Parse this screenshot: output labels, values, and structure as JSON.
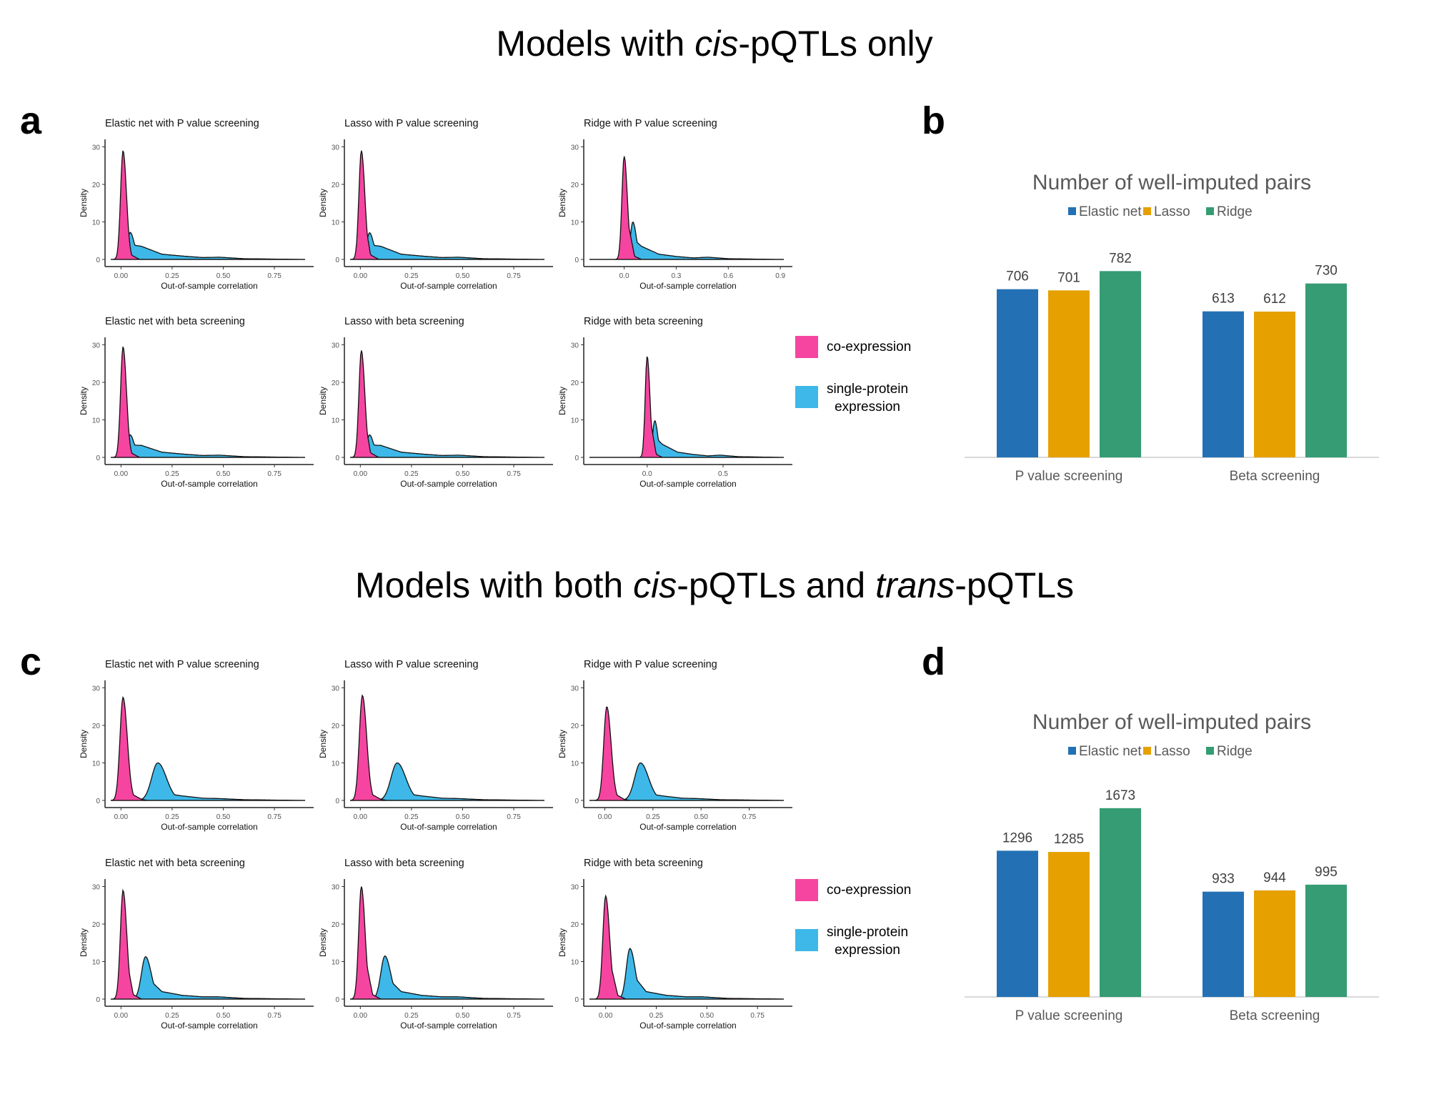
{
  "sections": [
    {
      "title_parts": [
        {
          "text": "Models with ",
          "italic": false
        },
        {
          "text": "cis",
          "italic": true
        },
        {
          "text": "-pQTLs only",
          "italic": false
        }
      ]
    },
    {
      "title_parts": [
        {
          "text": "Models with both ",
          "italic": false
        },
        {
          "text": "cis",
          "italic": true
        },
        {
          "text": "-pQTLs and ",
          "italic": false
        },
        {
          "text": "trans",
          "italic": true
        },
        {
          "text": "-pQTLs",
          "italic": false
        }
      ]
    }
  ],
  "panel_letters": {
    "a": "a",
    "b": "b",
    "c": "c",
    "d": "d"
  },
  "density_legend": {
    "items": [
      {
        "label": "co-expression",
        "color": "#F545A0"
      },
      {
        "label": "single-protein\nexpression",
        "color": "#3DB8E8"
      }
    ]
  },
  "colors": {
    "coexpression": "#F545A0",
    "single_protein": "#3DB8E8",
    "elastic_net": "#2371B4",
    "lasso": "#E6A000",
    "ridge": "#359C73"
  },
  "chart_data": [
    {
      "panel": "a",
      "type": "area",
      "title": "Elastic net with P value screening",
      "xlabel": "Out-of-sample correlation",
      "ylabel": "Density",
      "xlim": [
        -0.05,
        0.9
      ],
      "ylim": [
        0,
        32
      ],
      "xticks": [
        "0.00",
        "0.25",
        "0.50",
        "0.75"
      ],
      "xtick_values": [
        0,
        0.25,
        0.5,
        0.75
      ],
      "yticks": [
        0,
        10,
        20,
        30
      ],
      "series": [
        {
          "name": "co-expression",
          "peak_x": 0.01,
          "peak_y": 29,
          "sd": 0.012,
          "tail": [
            [
              0.05,
              1.2
            ],
            [
              0.09,
              0
            ]
          ]
        },
        {
          "name": "single-protein expression",
          "peak_x": 0.045,
          "peak_y": 7.2,
          "tail": [
            [
              0.1,
              3.5
            ],
            [
              0.2,
              1.4
            ],
            [
              0.3,
              0.9
            ],
            [
              0.4,
              0.5
            ],
            [
              0.48,
              0.6
            ],
            [
              0.6,
              0.2
            ],
            [
              0.88,
              0
            ]
          ]
        }
      ]
    },
    {
      "panel": "a",
      "type": "area",
      "title": "Lasso with P value screening",
      "xlabel": "Out-of-sample correlation",
      "ylabel": "Density",
      "xlim": [
        -0.05,
        0.9
      ],
      "ylim": [
        0,
        32
      ],
      "xticks": [
        "0.00",
        "0.25",
        "0.50",
        "0.75"
      ],
      "xtick_values": [
        0,
        0.25,
        0.5,
        0.75
      ],
      "yticks": [
        0,
        10,
        20,
        30
      ],
      "series": [
        {
          "name": "co-expression",
          "peak_x": 0.005,
          "peak_y": 29,
          "sd": 0.012,
          "tail": [
            [
              0.05,
              1.2
            ],
            [
              0.09,
              0
            ]
          ]
        },
        {
          "name": "single-protein expression",
          "peak_x": 0.045,
          "peak_y": 7.1,
          "tail": [
            [
              0.1,
              3.5
            ],
            [
              0.2,
              1.4
            ],
            [
              0.3,
              0.9
            ],
            [
              0.4,
              0.5
            ],
            [
              0.48,
              0.6
            ],
            [
              0.6,
              0.2
            ],
            [
              0.88,
              0
            ]
          ]
        }
      ]
    },
    {
      "panel": "a",
      "type": "area",
      "title": "Ridge with P value screening",
      "xlabel": "Out-of-sample correlation",
      "ylabel": "Density",
      "xlim": [
        -0.2,
        0.92
      ],
      "ylim": [
        0,
        32
      ],
      "xticks": [
        "0.0",
        "0.3",
        "0.6",
        "0.9"
      ],
      "xtick_values": [
        0,
        0.3,
        0.6,
        0.9
      ],
      "yticks": [
        0,
        10,
        20,
        30
      ],
      "series": [
        {
          "name": "co-expression",
          "peak_x": 0.0,
          "peak_y": 27.5,
          "sd": 0.013,
          "tail": [
            [
              0.06,
              0.8
            ],
            [
              0.1,
              0
            ]
          ]
        },
        {
          "name": "single-protein expression",
          "peak_x": 0.05,
          "peak_y": 10,
          "tail": [
            [
              0.1,
              3.5
            ],
            [
              0.2,
              1.4
            ],
            [
              0.3,
              0.8
            ],
            [
              0.4,
              0.4
            ],
            [
              0.48,
              0.6
            ],
            [
              0.6,
              0.2
            ],
            [
              0.88,
              0
            ]
          ]
        }
      ]
    },
    {
      "panel": "a",
      "type": "area",
      "title": "Elastic net with beta screening",
      "xlabel": "Out-of-sample correlation",
      "ylabel": "Density",
      "xlim": [
        -0.05,
        0.9
      ],
      "ylim": [
        0,
        32
      ],
      "xticks": [
        "0.00",
        "0.25",
        "0.50",
        "0.75"
      ],
      "xtick_values": [
        0,
        0.25,
        0.5,
        0.75
      ],
      "yticks": [
        0,
        10,
        20,
        30
      ],
      "series": [
        {
          "name": "co-expression",
          "peak_x": 0.01,
          "peak_y": 29.5,
          "sd": 0.012,
          "tail": [
            [
              0.05,
              1.2
            ],
            [
              0.09,
              0
            ]
          ]
        },
        {
          "name": "single-protein expression",
          "peak_x": 0.045,
          "peak_y": 6,
          "tail": [
            [
              0.1,
              3.2
            ],
            [
              0.2,
              1.4
            ],
            [
              0.3,
              0.9
            ],
            [
              0.4,
              0.5
            ],
            [
              0.48,
              0.6
            ],
            [
              0.6,
              0.2
            ],
            [
              0.88,
              0
            ]
          ]
        }
      ]
    },
    {
      "panel": "a",
      "type": "area",
      "title": "Lasso with beta screening",
      "xlabel": "Out-of-sample correlation",
      "ylabel": "Density",
      "xlim": [
        -0.05,
        0.9
      ],
      "ylim": [
        0,
        32
      ],
      "xticks": [
        "0.00",
        "0.25",
        "0.50",
        "0.75"
      ],
      "xtick_values": [
        0,
        0.25,
        0.5,
        0.75
      ],
      "yticks": [
        0,
        10,
        20,
        30
      ],
      "series": [
        {
          "name": "co-expression",
          "peak_x": 0.005,
          "peak_y": 28.5,
          "sd": 0.012,
          "tail": [
            [
              0.05,
              1.2
            ],
            [
              0.09,
              0
            ]
          ]
        },
        {
          "name": "single-protein expression",
          "peak_x": 0.045,
          "peak_y": 6,
          "tail": [
            [
              0.1,
              3.2
            ],
            [
              0.2,
              1.4
            ],
            [
              0.3,
              0.9
            ],
            [
              0.4,
              0.5
            ],
            [
              0.48,
              0.6
            ],
            [
              0.6,
              0.2
            ],
            [
              0.88,
              0
            ]
          ]
        }
      ]
    },
    {
      "panel": "a",
      "type": "area",
      "title": "Ridge with beta screening",
      "xlabel": "Out-of-sample correlation",
      "ylabel": "Density",
      "xlim": [
        -0.38,
        0.9
      ],
      "ylim": [
        0,
        32
      ],
      "xticks": [
        "0.0",
        "0.5"
      ],
      "xtick_values": [
        0,
        0.5
      ],
      "yticks": [
        0,
        10,
        20,
        30
      ],
      "series": [
        {
          "name": "co-expression",
          "peak_x": 0.0,
          "peak_y": 27,
          "sd": 0.013,
          "tail": [
            [
              0.06,
              0.8
            ],
            [
              0.1,
              0
            ]
          ]
        },
        {
          "name": "single-protein expression",
          "peak_x": 0.05,
          "peak_y": 9.8,
          "tail": [
            [
              0.1,
              3.5
            ],
            [
              0.2,
              1.4
            ],
            [
              0.3,
              0.8
            ],
            [
              0.4,
              0.4
            ],
            [
              0.48,
              0.6
            ],
            [
              0.6,
              0.2
            ],
            [
              0.88,
              0
            ]
          ]
        }
      ]
    },
    {
      "panel": "b",
      "type": "bar",
      "title": "Number of well-imputed pairs",
      "categories": [
        "P value screening",
        "Beta screening"
      ],
      "series": [
        {
          "name": "Elastic net",
          "values": [
            706,
            613
          ]
        },
        {
          "name": "Lasso",
          "values": [
            701,
            612
          ]
        },
        {
          "name": "Ridge",
          "values": [
            782,
            730
          ]
        }
      ],
      "ylim": [
        0,
        900
      ],
      "legend": "top-center",
      "xlabel": "",
      "ylabel": ""
    },
    {
      "panel": "c",
      "type": "area",
      "title": "Elastic net with P value screening",
      "xlabel": "Out-of-sample correlation",
      "ylabel": "Density",
      "xlim": [
        -0.05,
        0.9
      ],
      "ylim": [
        0,
        32
      ],
      "xticks": [
        "0.00",
        "0.25",
        "0.50",
        "0.75"
      ],
      "xtick_values": [
        0,
        0.25,
        0.5,
        0.75
      ],
      "yticks": [
        0,
        10,
        20,
        30
      ],
      "series": [
        {
          "name": "co-expression",
          "peak_x": 0.01,
          "peak_y": 27.5,
          "sd": 0.015,
          "tail": [
            [
              0.06,
              1.5
            ],
            [
              0.1,
              0.3
            ],
            [
              0.13,
              0
            ]
          ]
        },
        {
          "name": "single-protein expression",
          "peak_x": 0.18,
          "peak_y": 10,
          "sd": 0.03,
          "tail": [
            [
              0.25,
              1.6
            ],
            [
              0.3,
              1.2
            ],
            [
              0.4,
              0.6
            ],
            [
              0.48,
              0.5
            ],
            [
              0.6,
              0.2
            ],
            [
              0.88,
              0
            ]
          ]
        }
      ]
    },
    {
      "panel": "c",
      "type": "area",
      "title": "Lasso with P value screening",
      "xlabel": "Out-of-sample correlation",
      "ylabel": "Density",
      "xlim": [
        -0.05,
        0.9
      ],
      "ylim": [
        0,
        32
      ],
      "xticks": [
        "0.00",
        "0.25",
        "0.50",
        "0.75"
      ],
      "xtick_values": [
        0,
        0.25,
        0.5,
        0.75
      ],
      "yticks": [
        0,
        10,
        20,
        30
      ],
      "series": [
        {
          "name": "co-expression",
          "peak_x": 0.01,
          "peak_y": 28,
          "sd": 0.015,
          "tail": [
            [
              0.06,
              1.5
            ],
            [
              0.1,
              0.3
            ],
            [
              0.13,
              0
            ]
          ]
        },
        {
          "name": "single-protein expression",
          "peak_x": 0.18,
          "peak_y": 10,
          "sd": 0.03,
          "tail": [
            [
              0.25,
              1.6
            ],
            [
              0.3,
              1.2
            ],
            [
              0.4,
              0.6
            ],
            [
              0.48,
              0.5
            ],
            [
              0.6,
              0.2
            ],
            [
              0.88,
              0
            ]
          ]
        }
      ]
    },
    {
      "panel": "c",
      "type": "area",
      "title": "Ridge with P value screening",
      "xlabel": "Out-of-sample correlation",
      "ylabel": "Density",
      "xlim": [
        -0.08,
        0.93
      ],
      "ylim": [
        0,
        32
      ],
      "xticks": [
        "0.00",
        "0.25",
        "0.50",
        "0.75"
      ],
      "xtick_values": [
        0,
        0.25,
        0.5,
        0.75
      ],
      "yticks": [
        0,
        10,
        20,
        30
      ],
      "series": [
        {
          "name": "co-expression",
          "peak_x": 0.01,
          "peak_y": 25,
          "sd": 0.016,
          "tail": [
            [
              0.06,
              1.5
            ],
            [
              0.1,
              0.3
            ],
            [
              0.13,
              0
            ]
          ]
        },
        {
          "name": "single-protein expression",
          "peak_x": 0.185,
          "peak_y": 10,
          "sd": 0.03,
          "tail": [
            [
              0.25,
              1.6
            ],
            [
              0.3,
              1.2
            ],
            [
              0.4,
              0.6
            ],
            [
              0.48,
              0.5
            ],
            [
              0.6,
              0.2
            ],
            [
              0.92,
              0
            ]
          ]
        }
      ]
    },
    {
      "panel": "c",
      "type": "area",
      "title": "Elastic net with beta screening",
      "xlabel": "Out-of-sample correlation",
      "ylabel": "Density",
      "xlim": [
        -0.05,
        0.9
      ],
      "ylim": [
        0,
        32
      ],
      "xticks": [
        "0.00",
        "0.25",
        "0.50",
        "0.75"
      ],
      "xtick_values": [
        0,
        0.25,
        0.5,
        0.75
      ],
      "yticks": [
        0,
        10,
        20,
        30
      ],
      "series": [
        {
          "name": "co-expression",
          "peak_x": 0.01,
          "peak_y": 29,
          "sd": 0.013,
          "tail": [
            [
              0.06,
              1.2
            ],
            [
              0.1,
              0
            ]
          ]
        },
        {
          "name": "single-protein expression",
          "peak_x": 0.12,
          "peak_y": 11.3,
          "sd": 0.02,
          "tail": [
            [
              0.2,
              2
            ],
            [
              0.3,
              1.0
            ],
            [
              0.4,
              0.6
            ],
            [
              0.48,
              0.6
            ],
            [
              0.6,
              0.2
            ],
            [
              0.88,
              0
            ]
          ]
        }
      ]
    },
    {
      "panel": "c",
      "type": "area",
      "title": "Lasso with beta screening",
      "xlabel": "Out-of-sample correlation",
      "ylabel": "Density",
      "xlim": [
        -0.05,
        0.9
      ],
      "ylim": [
        0,
        32
      ],
      "xticks": [
        "0.00",
        "0.25",
        "0.50",
        "0.75"
      ],
      "xtick_values": [
        0,
        0.25,
        0.5,
        0.75
      ],
      "yticks": [
        0,
        10,
        20,
        30
      ],
      "series": [
        {
          "name": "co-expression",
          "peak_x": 0.005,
          "peak_y": 30,
          "sd": 0.013,
          "tail": [
            [
              0.06,
              1.2
            ],
            [
              0.1,
              0
            ]
          ]
        },
        {
          "name": "single-protein expression",
          "peak_x": 0.12,
          "peak_y": 11.5,
          "sd": 0.02,
          "tail": [
            [
              0.2,
              2
            ],
            [
              0.3,
              1.0
            ],
            [
              0.4,
              0.6
            ],
            [
              0.48,
              0.6
            ],
            [
              0.6,
              0.2
            ],
            [
              0.88,
              0
            ]
          ]
        }
      ]
    },
    {
      "panel": "c",
      "type": "area",
      "title": "Ridge with beta screening",
      "xlabel": "Out-of-sample correlation",
      "ylabel": "Density",
      "xlim": [
        -0.08,
        0.88
      ],
      "ylim": [
        0,
        32
      ],
      "xticks": [
        "0.00",
        "0.25",
        "0.50",
        "0.75"
      ],
      "xtick_values": [
        0,
        0.25,
        0.5,
        0.75
      ],
      "yticks": [
        0,
        10,
        20,
        30
      ],
      "series": [
        {
          "name": "co-expression",
          "peak_x": 0.0,
          "peak_y": 27.5,
          "sd": 0.014,
          "tail": [
            [
              0.06,
              1.0
            ],
            [
              0.1,
              0
            ]
          ]
        },
        {
          "name": "single-protein expression",
          "peak_x": 0.12,
          "peak_y": 13.5,
          "sd": 0.018,
          "tail": [
            [
              0.2,
              2
            ],
            [
              0.3,
              1.0
            ],
            [
              0.4,
              0.6
            ],
            [
              0.48,
              0.6
            ],
            [
              0.6,
              0.2
            ],
            [
              0.88,
              0
            ]
          ]
        }
      ]
    },
    {
      "panel": "d",
      "type": "bar",
      "title": "Number of well-imputed pairs",
      "categories": [
        "P value screening",
        "Beta screening"
      ],
      "series": [
        {
          "name": "Elastic net",
          "values": [
            1296,
            933
          ]
        },
        {
          "name": "Lasso",
          "values": [
            1285,
            944
          ]
        },
        {
          "name": "Ridge",
          "values": [
            1673,
            995
          ]
        }
      ],
      "ylim": [
        0,
        1900
      ],
      "legend": "top-center",
      "xlabel": "",
      "ylabel": ""
    }
  ]
}
